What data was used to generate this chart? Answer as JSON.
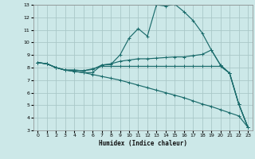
{
  "xlabel": "Humidex (Indice chaleur)",
  "bg_color": "#cce8e8",
  "grid_color": "#aac8c8",
  "line_color": "#1a6b6b",
  "xlim": [
    -0.5,
    23.5
  ],
  "ylim": [
    3,
    13
  ],
  "xticks": [
    0,
    1,
    2,
    3,
    4,
    5,
    6,
    7,
    8,
    9,
    10,
    11,
    12,
    13,
    14,
    15,
    16,
    17,
    18,
    19,
    20,
    21,
    22,
    23
  ],
  "yticks": [
    3,
    4,
    5,
    6,
    7,
    8,
    9,
    10,
    11,
    12,
    13
  ],
  "line1_x": [
    0,
    1,
    2,
    3,
    4,
    5,
    6,
    7,
    8,
    9,
    10,
    11,
    12,
    13,
    14,
    15,
    16,
    17,
    18,
    19,
    20,
    21,
    22,
    23
  ],
  "line1_y": [
    8.4,
    8.3,
    8.0,
    7.8,
    7.7,
    7.6,
    7.6,
    8.2,
    8.25,
    9.0,
    10.35,
    11.1,
    10.5,
    13.0,
    12.9,
    13.05,
    12.45,
    11.75,
    10.75,
    9.4,
    8.2,
    7.55,
    5.1,
    3.25
  ],
  "line2_x": [
    0,
    1,
    2,
    3,
    4,
    5,
    6,
    7,
    8,
    9,
    10,
    11,
    12,
    13,
    14,
    15,
    16,
    17,
    18,
    19,
    20,
    21,
    22,
    23
  ],
  "line2_y": [
    8.4,
    8.3,
    8.0,
    7.8,
    7.8,
    7.75,
    7.85,
    8.2,
    8.3,
    8.5,
    8.6,
    8.7,
    8.7,
    8.75,
    8.8,
    8.85,
    8.85,
    8.95,
    9.05,
    9.4,
    8.2,
    7.55,
    5.1,
    3.25
  ],
  "line3_x": [
    0,
    1,
    2,
    3,
    4,
    5,
    6,
    7,
    8,
    9,
    10,
    11,
    12,
    13,
    14,
    15,
    16,
    17,
    18,
    19,
    20,
    21,
    22,
    23
  ],
  "line3_y": [
    8.4,
    8.3,
    8.0,
    7.8,
    7.8,
    7.75,
    7.9,
    8.1,
    8.1,
    8.1,
    8.1,
    8.1,
    8.1,
    8.1,
    8.1,
    8.1,
    8.1,
    8.1,
    8.1,
    8.1,
    8.1,
    7.55,
    5.1,
    3.25
  ],
  "line4_x": [
    0,
    1,
    2,
    3,
    4,
    5,
    6,
    7,
    8,
    9,
    10,
    11,
    12,
    13,
    14,
    15,
    16,
    17,
    18,
    19,
    20,
    21,
    22,
    23
  ],
  "line4_y": [
    8.4,
    8.3,
    8.0,
    7.8,
    7.7,
    7.6,
    7.45,
    7.3,
    7.15,
    7.0,
    6.8,
    6.6,
    6.4,
    6.2,
    6.0,
    5.8,
    5.6,
    5.35,
    5.1,
    4.9,
    4.65,
    4.4,
    4.15,
    3.25
  ]
}
